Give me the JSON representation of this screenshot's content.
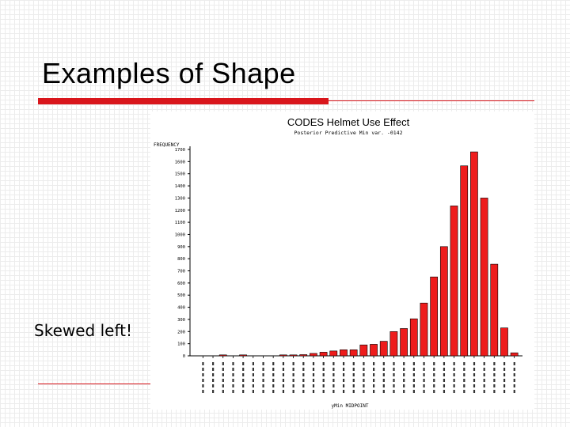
{
  "slide": {
    "title": "Examples of Shape",
    "caption": "Skewed left!",
    "accent_color": "#d9161c"
  },
  "chart_data": {
    "type": "bar",
    "title": "CODES Helmet Use Effect",
    "subtitle": "Posterior Predictive Min var. -0142",
    "ylabel": "FREQUENCY",
    "xlabel": "yMin MIDPOINT",
    "ylim": [
      0,
      1700
    ],
    "yticks": [
      0,
      100,
      200,
      300,
      400,
      500,
      600,
      700,
      800,
      900,
      1000,
      1100,
      1200,
      1300,
      1400,
      1500,
      1600,
      1700
    ],
    "bar_color": "#ee1c1c",
    "values": [
      0,
      0,
      3,
      0,
      3,
      0,
      0,
      0,
      5,
      5,
      10,
      20,
      30,
      40,
      50,
      50,
      90,
      95,
      120,
      200,
      225,
      305,
      435,
      650,
      900,
      1235,
      1565,
      1680,
      1300,
      755,
      230,
      25
    ]
  }
}
